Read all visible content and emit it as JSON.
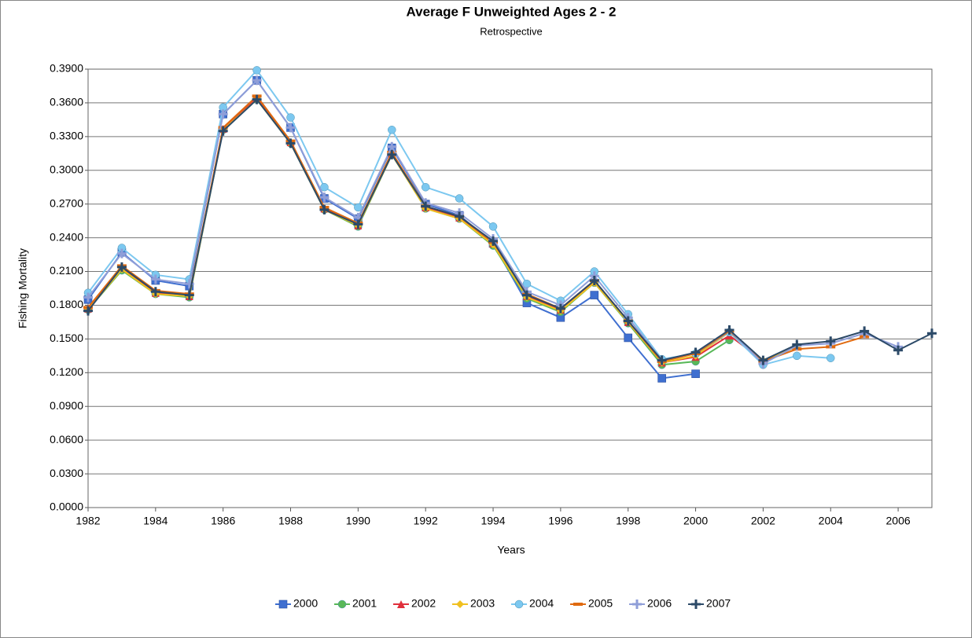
{
  "chart_data": {
    "type": "line",
    "title": "Average F Unweighted Ages 2 - 2",
    "subtitle": "Retrospective",
    "x_label": "Years",
    "y_label": "Fishing Mortality",
    "x": [
      1982,
      1983,
      1984,
      1985,
      1986,
      1987,
      1988,
      1989,
      1990,
      1991,
      1992,
      1993,
      1994,
      1995,
      1996,
      1997,
      1998,
      1999,
      2000,
      2001,
      2002,
      2003,
      2004,
      2005,
      2006,
      2007
    ],
    "xlim": [
      1982,
      2007
    ],
    "xticks": [
      1982,
      1984,
      1986,
      1988,
      1990,
      1992,
      1994,
      1996,
      1998,
      2000,
      2002,
      2004,
      2006
    ],
    "ylim": [
      0,
      0.39
    ],
    "yticks": [
      {
        "value": 0,
        "label": "0.0000"
      },
      {
        "value": 0.03,
        "label": "0.0300"
      },
      {
        "value": 0.06,
        "label": "0.0600"
      },
      {
        "value": 0.09,
        "label": "0.0900"
      },
      {
        "value": 0.12,
        "label": "0.1200"
      },
      {
        "value": 0.15,
        "label": "0.1500"
      },
      {
        "value": 0.18,
        "label": "0.1800"
      },
      {
        "value": 0.21,
        "label": "0.2100"
      },
      {
        "value": 0.24,
        "label": "0.2400"
      },
      {
        "value": 0.27,
        "label": "0.2700"
      },
      {
        "value": 0.3,
        "label": "0.3000"
      },
      {
        "value": 0.33,
        "label": "0.3300"
      },
      {
        "value": 0.36,
        "label": "0.3600"
      },
      {
        "value": 0.39,
        "label": "0.3900"
      }
    ],
    "grid": true,
    "legend": "bottom",
    "series": [
      {
        "name": "2000",
        "color": "#3f6fd0",
        "marker": "square",
        "values": [
          0.185,
          0.227,
          0.202,
          0.197,
          0.35,
          0.38,
          0.338,
          0.275,
          0.257,
          0.32,
          0.27,
          0.26,
          0.235,
          0.182,
          0.169,
          0.189,
          0.151,
          0.115,
          0.119,
          null,
          null,
          null,
          null,
          null,
          null,
          null
        ]
      },
      {
        "name": "2001",
        "color": "#58b858",
        "marker": "circle",
        "values": [
          0.176,
          0.211,
          0.19,
          0.187,
          0.336,
          0.363,
          0.324,
          0.265,
          0.25,
          0.314,
          0.266,
          0.257,
          0.233,
          0.186,
          0.174,
          0.2,
          0.164,
          0.127,
          0.13,
          0.149,
          null,
          null,
          null,
          null,
          null,
          null
        ]
      },
      {
        "name": "2002",
        "color": "#e0303c",
        "marker": "triangle",
        "values": [
          0.177,
          0.213,
          0.191,
          0.188,
          0.337,
          0.364,
          0.325,
          0.266,
          0.251,
          0.315,
          0.267,
          0.258,
          0.235,
          0.188,
          0.176,
          0.201,
          0.165,
          0.129,
          0.134,
          0.153,
          0.131,
          null,
          null,
          null,
          null,
          null
        ]
      },
      {
        "name": "2003",
        "color": "#f0c020",
        "marker": "diamond",
        "values": [
          0.176,
          0.212,
          0.19,
          0.188,
          0.336,
          0.363,
          0.324,
          0.265,
          0.251,
          0.314,
          0.266,
          0.257,
          0.234,
          0.187,
          0.175,
          0.2,
          0.165,
          0.129,
          0.135,
          0.156,
          0.131,
          0.143,
          null,
          null,
          null,
          null
        ]
      },
      {
        "name": "2004",
        "color": "#7cc8f0",
        "marker": "circle",
        "values": [
          0.191,
          0.231,
          0.207,
          0.203,
          0.356,
          0.389,
          0.347,
          0.285,
          0.267,
          0.336,
          0.285,
          0.275,
          0.25,
          0.199,
          0.184,
          0.21,
          0.172,
          0.132,
          0.137,
          0.156,
          0.127,
          0.135,
          0.133,
          null,
          null,
          null
        ]
      },
      {
        "name": "2005",
        "color": "#e06a10",
        "marker": "dash",
        "values": [
          0.178,
          0.215,
          0.193,
          0.19,
          0.338,
          0.366,
          0.326,
          0.267,
          0.253,
          0.316,
          0.268,
          0.259,
          0.236,
          0.19,
          0.177,
          0.202,
          0.166,
          0.13,
          0.137,
          0.157,
          0.13,
          0.141,
          0.143,
          0.152,
          null,
          null
        ]
      },
      {
        "name": "2006",
        "color": "#8f9ed8",
        "marker": "plus",
        "values": [
          0.187,
          0.226,
          0.203,
          0.199,
          0.35,
          0.38,
          0.338,
          0.276,
          0.258,
          0.321,
          0.271,
          0.262,
          0.239,
          0.192,
          0.18,
          0.206,
          0.169,
          0.131,
          0.138,
          0.158,
          0.128,
          0.144,
          0.146,
          0.155,
          0.143,
          null
        ]
      },
      {
        "name": "2007",
        "color": "#2c4a68",
        "marker": "plus",
        "values": [
          0.175,
          0.214,
          0.192,
          0.189,
          0.335,
          0.363,
          0.324,
          0.265,
          0.252,
          0.314,
          0.268,
          0.259,
          0.237,
          0.189,
          0.177,
          0.202,
          0.166,
          0.131,
          0.138,
          0.158,
          0.131,
          0.145,
          0.148,
          0.157,
          0.14,
          0.155
        ]
      }
    ]
  }
}
